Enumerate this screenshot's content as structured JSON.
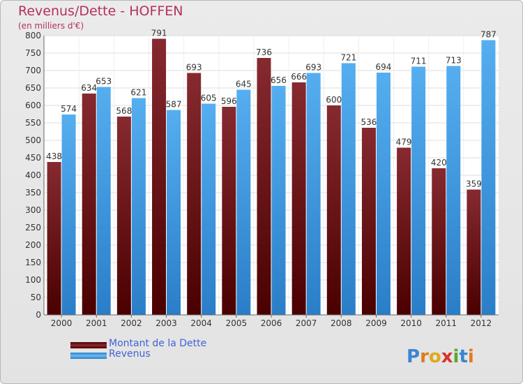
{
  "title": "Revenus/Dette - HOFFEN",
  "subtitle": "(en milliers d'€)",
  "brand": "Proxiti",
  "colors": {
    "dette": "#7a1b22",
    "revenus": "#3f9de5",
    "title": "#b5305a",
    "legend_text": "#3f63d8"
  },
  "chart_data": {
    "type": "bar",
    "categories": [
      "2000",
      "2001",
      "2002",
      "2003",
      "2004",
      "2005",
      "2006",
      "2007",
      "2008",
      "2009",
      "2010",
      "2011",
      "2012"
    ],
    "series": [
      {
        "name": "Montant de la Dette",
        "values": [
          438,
          634,
          568,
          791,
          693,
          596,
          736,
          666,
          600,
          536,
          479,
          420,
          359
        ]
      },
      {
        "name": "Revenus",
        "values": [
          574,
          653,
          621,
          587,
          605,
          645,
          656,
          693,
          721,
          694,
          711,
          713,
          787
        ]
      }
    ],
    "ylim": [
      0,
      800
    ],
    "yticks": [
      0,
      50,
      100,
      150,
      200,
      250,
      300,
      350,
      400,
      450,
      500,
      550,
      600,
      650,
      700,
      750,
      800
    ],
    "grid": true,
    "legend_position": "bottom-left"
  }
}
